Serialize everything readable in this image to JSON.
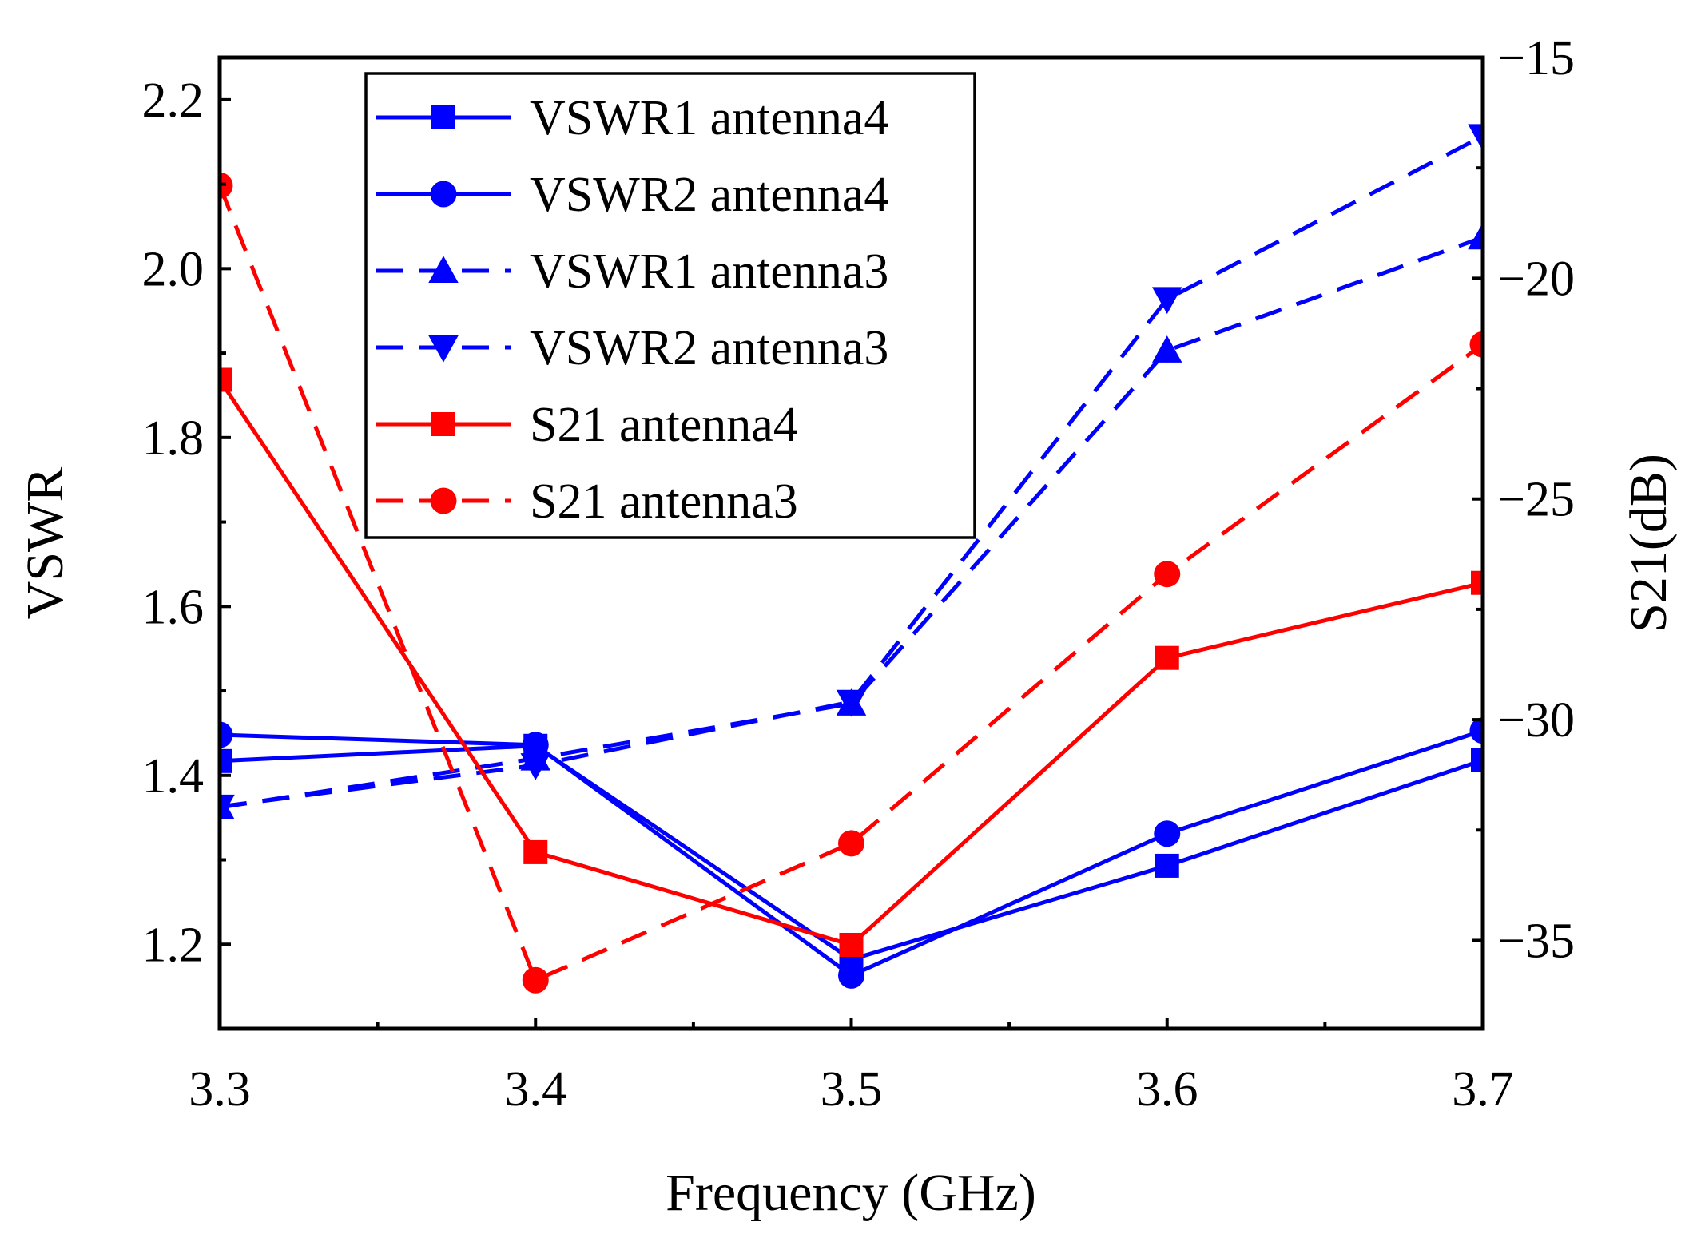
{
  "chart_data": {
    "type": "line",
    "xlabel": "Frequency (GHz)",
    "ylabel_left": "VSWR",
    "ylabel_right": "S21(dB)",
    "xlim": [
      3.3,
      3.7
    ],
    "ylim_left": [
      1.1,
      2.25
    ],
    "ylim_right": [
      -37,
      -15
    ],
    "x_ticks": [
      "3.3",
      "3.4",
      "3.5",
      "3.6",
      "3.7"
    ],
    "y_left_ticks": [
      "1.2",
      "1.4",
      "1.6",
      "1.8",
      "2.0",
      "2.2"
    ],
    "y_right_ticks": [
      "−15",
      "−20",
      "−25",
      "−30",
      "−35"
    ],
    "grid": false,
    "legend_position": "top-left-center",
    "x": [
      3.3,
      3.4,
      3.5,
      3.6,
      3.7
    ],
    "series": [
      {
        "name": "VSWR1 antenna4",
        "axis": "left",
        "values": [
          1.417,
          1.435,
          1.182,
          1.293,
          1.418
        ],
        "color": "#0000ff",
        "dash": "solid",
        "marker": "square"
      },
      {
        "name": "VSWR2 antenna4",
        "axis": "left",
        "values": [
          1.448,
          1.436,
          1.163,
          1.331,
          1.453
        ],
        "color": "#0000ff",
        "dash": "solid",
        "marker": "circle"
      },
      {
        "name": "VSWR1 antenna3",
        "axis": "left",
        "values": [
          1.362,
          1.42,
          1.485,
          1.903,
          2.037
        ],
        "color": "#0000ff",
        "dash": "dashed",
        "marker": "triangle-up"
      },
      {
        "name": "VSWR2 antenna3",
        "axis": "left",
        "values": [
          1.363,
          1.412,
          1.487,
          1.964,
          2.157
        ],
        "color": "#0000ff",
        "dash": "dashed",
        "marker": "triangle-down"
      },
      {
        "name": "S21 antenna4",
        "axis": "right",
        "values": [
          -22.3,
          -33.0,
          -35.1,
          -28.6,
          -26.9
        ],
        "color": "#ff0000",
        "dash": "solid",
        "marker": "square"
      },
      {
        "name": "S21 antenna3",
        "axis": "right",
        "values": [
          -17.9,
          -35.9,
          -32.8,
          -26.7,
          -21.5
        ],
        "color": "#ff0000",
        "dash": "dashed",
        "marker": "circle"
      }
    ]
  }
}
